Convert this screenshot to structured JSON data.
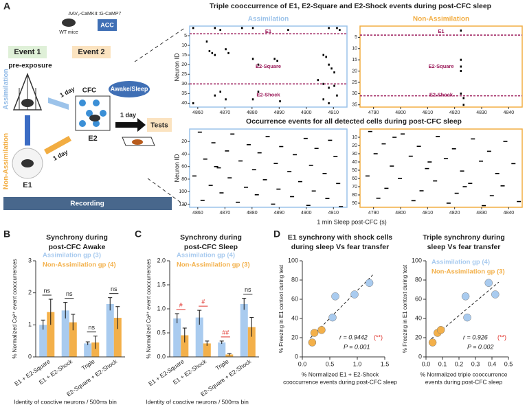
{
  "panel_labels": [
    "A",
    "B",
    "C",
    "D"
  ],
  "schematic": {
    "virus": "AAV₉-CaMKII::G-CaMP7",
    "mice": "WT mice",
    "region": "ACC",
    "event1": "Event 1",
    "event2": "Event 2",
    "pre_exposure": "pre-exposure",
    "assimilation": "Assimilation",
    "non_assimilation": "Non-Assimilation",
    "cfc": "CFC",
    "awake_sleep": "Awake/Sleep",
    "one_day": "1 day",
    "tests": "Tests",
    "e1": "E1",
    "e2": "E2",
    "recording": "Recording"
  },
  "raster": {
    "title": "Triple cooccurrence of E1, E2-Square and E2-Shock events during post-CFC sleep",
    "title2": "Occurrence events for all detected cells during post-CFC sleep",
    "group_labels": [
      "Assimilation",
      "Non-Assimilation"
    ],
    "group_colors": [
      "#9cc3ea",
      "#f2ad42"
    ],
    "divider_color": "#9b1b5a",
    "xlabel": "1 min Sleep post-CFC (s)",
    "ylabel": "Neuron ID",
    "event_labels": [
      "E1",
      "E2-Square",
      "E2-Shock"
    ],
    "panels": [
      {
        "group": 0,
        "labels": true,
        "xlim": [
          4857,
          4915
        ],
        "ylim": [
          0,
          42
        ],
        "xticks": [
          4860,
          4870,
          4880,
          4890,
          4900,
          4910
        ],
        "yticks": [
          5,
          10,
          15,
          20,
          25,
          30,
          35,
          40
        ],
        "dividers": [
          4,
          30
        ],
        "events": [
          [
            4858,
            1
          ],
          [
            4866,
            1
          ],
          [
            4868,
            2
          ],
          [
            4876,
            1
          ],
          [
            4880,
            1
          ],
          [
            4893,
            2
          ],
          [
            4908,
            1
          ],
          [
            4911,
            1
          ],
          [
            4912,
            2
          ],
          [
            4863,
            8
          ],
          [
            4864,
            13
          ],
          [
            4865,
            14
          ],
          [
            4866,
            15
          ],
          [
            4870,
            12
          ],
          [
            4871,
            14
          ],
          [
            4880,
            17
          ],
          [
            4882,
            20
          ],
          [
            4888,
            17
          ],
          [
            4889,
            18
          ],
          [
            4906,
            15
          ],
          [
            4907,
            16
          ],
          [
            4908,
            20
          ],
          [
            4909,
            22
          ],
          [
            4910,
            24
          ],
          [
            4904,
            28
          ],
          [
            4906,
            30
          ],
          [
            4908,
            32
          ],
          [
            4910,
            31
          ],
          [
            4868,
            34
          ],
          [
            4866,
            36
          ],
          [
            4870,
            38
          ],
          [
            4880,
            38
          ],
          [
            4882,
            34
          ],
          [
            4906,
            38
          ],
          [
            4908,
            40
          ],
          [
            4911,
            36
          ],
          [
            4858,
            40
          ],
          [
            4890,
            39
          ]
        ]
      },
      {
        "group": 1,
        "labels": true,
        "xlim": [
          4785,
          4845
        ],
        "ylim": [
          0,
          36
        ],
        "xticks": [
          4790,
          4800,
          4810,
          4820,
          4830,
          4840
        ],
        "yticks": [
          5,
          10,
          15,
          20,
          25,
          30,
          35
        ],
        "dividers": [
          4,
          31
        ],
        "events": [
          [
            4822,
            2
          ],
          [
            4822,
            15
          ],
          [
            4822,
            18
          ],
          [
            4822,
            20
          ],
          [
            4822,
            30
          ],
          [
            4823,
            32
          ],
          [
            4823,
            35
          ]
        ]
      },
      {
        "group": 0,
        "labels": false,
        "xlim": [
          4857,
          4915
        ],
        "ylim": [
          0,
          125
        ],
        "xticks": [
          4860,
          4870,
          4880,
          4890,
          4900,
          4910
        ],
        "yticks": [
          20,
          40,
          60,
          80,
          100,
          120
        ],
        "dividers": [],
        "events": [
          [
            4860,
            5
          ],
          [
            4872,
            8
          ],
          [
            4885,
            12
          ],
          [
            4899,
            15
          ],
          [
            4908,
            18
          ],
          [
            4865,
            22
          ],
          [
            4878,
            25
          ],
          [
            4890,
            28
          ],
          [
            4903,
            31
          ],
          [
            4870,
            35
          ],
          [
            4882,
            38
          ],
          [
            4895,
            41
          ],
          [
            4910,
            44
          ],
          [
            4862,
            48
          ],
          [
            4875,
            51
          ],
          [
            4888,
            55
          ],
          [
            4901,
            58
          ],
          [
            4867,
            62
          ],
          [
            4880,
            65
          ],
          [
            4893,
            68
          ],
          [
            4906,
            71
          ],
          [
            4858,
            75
          ],
          [
            4871,
            78
          ],
          [
            4884,
            81
          ],
          [
            4897,
            84
          ],
          [
            4911,
            87
          ],
          [
            4864,
            90
          ],
          [
            4877,
            93
          ],
          [
            4889,
            96
          ],
          [
            4902,
            99
          ],
          [
            4868,
            102
          ],
          [
            4881,
            105
          ],
          [
            4894,
            108
          ],
          [
            4907,
            111
          ],
          [
            4861,
            114
          ],
          [
            4874,
            117
          ],
          [
            4887,
            120
          ],
          [
            4900,
            122
          ],
          [
            4912,
            124
          ],
          [
            4866,
            60
          ]
        ]
      },
      {
        "group": 1,
        "labels": false,
        "xlim": [
          4785,
          4845
        ],
        "ylim": [
          0,
          95
        ],
        "xticks": [
          4790,
          4800,
          4810,
          4820,
          4830,
          4840
        ],
        "yticks": [
          10,
          20,
          30,
          40,
          50,
          60,
          70,
          80,
          90
        ],
        "dividers": [],
        "events": [
          [
            4788,
            3
          ],
          [
            4800,
            6
          ],
          [
            4813,
            9
          ],
          [
            4826,
            12
          ],
          [
            4838,
            15
          ],
          [
            4793,
            18
          ],
          [
            4806,
            21
          ],
          [
            4819,
            24
          ],
          [
            4832,
            27
          ],
          [
            4790,
            30
          ],
          [
            4803,
            33
          ],
          [
            4816,
            36
          ],
          [
            4829,
            39
          ],
          [
            4841,
            42
          ],
          [
            4796,
            45
          ],
          [
            4809,
            48
          ],
          [
            4822,
            51
          ],
          [
            4835,
            54
          ],
          [
            4787,
            57
          ],
          [
            4799,
            60
          ],
          [
            4812,
            63
          ],
          [
            4825,
            66
          ],
          [
            4837,
            69
          ],
          [
            4794,
            72
          ],
          [
            4807,
            75
          ],
          [
            4820,
            78
          ],
          [
            4833,
            81
          ],
          [
            4791,
            84
          ],
          [
            4804,
            87
          ],
          [
            4817,
            90
          ],
          [
            4830,
            93
          ],
          [
            4843,
            88
          ],
          [
            4797,
            10
          ],
          [
            4810,
            40
          ],
          [
            4823,
            70
          ]
        ]
      }
    ]
  },
  "chart_data": [
    {
      "type": "bar",
      "title": [
        "Synchrony during",
        "post-CFC Awake"
      ],
      "ylabel": "% Normalized Ca²⁺ event cooccurrences",
      "xlabel": "Identity of coactive neurons / 500ms bin",
      "categories": [
        "E1 + E2-Square",
        "E1 + E2-Shock",
        "Triple",
        "E2-Square + E2-Shock"
      ],
      "series": [
        {
          "name": "Assimilation gp (3)",
          "color": "#a9cbef",
          "values": [
            1.0,
            1.45,
            0.42,
            1.65
          ],
          "errors": [
            0.15,
            0.25,
            0.05,
            0.2
          ]
        },
        {
          "name": "Non-Assimilation gp (4)",
          "color": "#f3b04a",
          "values": [
            1.4,
            1.08,
            0.45,
            1.22
          ],
          "errors": [
            0.4,
            0.25,
            0.2,
            0.35
          ]
        }
      ],
      "ylim": [
        0,
        3
      ],
      "yticks": [
        0,
        1,
        2,
        3
      ],
      "annotations": [
        {
          "text": "ns",
          "color": "#222222"
        },
        {
          "text": "ns",
          "color": "#222222"
        },
        {
          "text": "ns",
          "color": "#222222"
        },
        {
          "text": "ns",
          "color": "#222222"
        }
      ]
    },
    {
      "type": "bar",
      "title": [
        "Synchrony during",
        "post-CFC Sleep"
      ],
      "ylabel": "% Normalized Ca²⁺ event cooccurrences",
      "xlabel": "Identity of coactive neurons / 500ms bin",
      "categories": [
        "E1 + E2-Square",
        "E1 + E2-Shock",
        "Triple",
        "E2-Square + E2-Shock"
      ],
      "series": [
        {
          "name": "Assimilation gp (4)",
          "color": "#a9cbef",
          "values": [
            0.8,
            0.82,
            0.3,
            1.1
          ],
          "errors": [
            0.1,
            0.15,
            0.03,
            0.12
          ]
        },
        {
          "name": "Non-Assimilation gp (3)",
          "color": "#f3b04a",
          "values": [
            0.45,
            0.28,
            0.05,
            0.62
          ],
          "errors": [
            0.15,
            0.05,
            0.02,
            0.2
          ]
        }
      ],
      "ylim": [
        0,
        2
      ],
      "yticks": [
        {
          "value": 0,
          "label": "0.0"
        },
        0.5,
        {
          "value": 1,
          "label": "1.0"
        },
        1.5,
        {
          "value": 2,
          "label": "2.0"
        }
      ],
      "annotations": [
        {
          "text": "#",
          "color": "#e0322b"
        },
        {
          "text": "#",
          "color": "#e0322b"
        },
        {
          "text": "##",
          "color": "#e0322b"
        },
        {
          "text": "ns",
          "color": "#222222"
        }
      ]
    },
    {
      "type": "scatter",
      "title": [
        "E1 synchrony with shock cells",
        "during sleep Vs fear transfer"
      ],
      "ylabel": "% Freezing in E1 context during test",
      "xlabel": [
        "% Normalized E1 + E2-Shock",
        "cooccurrence events during post-CFC sleep"
      ],
      "series": [
        {
          "name": "Assimilation gp (4)",
          "color": "#a9cbef",
          "x": [
            0.55,
            0.6,
            0.95,
            1.22
          ],
          "y": [
            41,
            63,
            65,
            77
          ]
        },
        {
          "name": "Non-Assimilation gp (3)",
          "color": "#f3b04a",
          "x": [
            0.18,
            0.22,
            0.35
          ],
          "y": [
            15,
            25,
            28
          ]
        }
      ],
      "xlim": [
        0,
        1.5
      ],
      "xticks": [
        {
          "value": 0,
          "label": "0.0"
        },
        0.5,
        {
          "value": 1,
          "label": "1.0"
        },
        1.5
      ],
      "ylim": [
        0,
        100
      ],
      "yticks": [
        0,
        20,
        40,
        60,
        80,
        100
      ],
      "legend": false,
      "fit_line": true,
      "stats": {
        "r": "r = 0.9442",
        "sig": "(**)",
        "p": "P = 0.001"
      }
    },
    {
      "type": "scatter",
      "title": [
        "Triple synchrony during",
        "sleep Vs fear transfer"
      ],
      "ylabel": "% Freezing in E1 context during test",
      "xlabel": [
        "% Normalized triple cooccurrence",
        "events during post-CFC sleep"
      ],
      "series": [
        {
          "name": "Assimilation gp (4)",
          "color": "#a9cbef",
          "x": [
            0.25,
            0.24,
            0.38,
            0.42
          ],
          "y": [
            41,
            63,
            77,
            65
          ]
        },
        {
          "name": "Non-Assimilation gp (3)",
          "color": "#f3b04a",
          "x": [
            0.04,
            0.07,
            0.09
          ],
          "y": [
            15,
            25,
            28
          ]
        }
      ],
      "xlim": [
        0,
        0.5
      ],
      "xticks": [
        {
          "value": 0,
          "label": "0.0"
        },
        0.1,
        0.2,
        0.3,
        0.4,
        0.5
      ],
      "ylim": [
        0,
        100
      ],
      "yticks": [
        0,
        20,
        40,
        60,
        80,
        100
      ],
      "legend": true,
      "fit_line": true,
      "stats": {
        "r": "r = 0.926",
        "sig": "(**)",
        "p": "P = 0.002"
      }
    }
  ]
}
